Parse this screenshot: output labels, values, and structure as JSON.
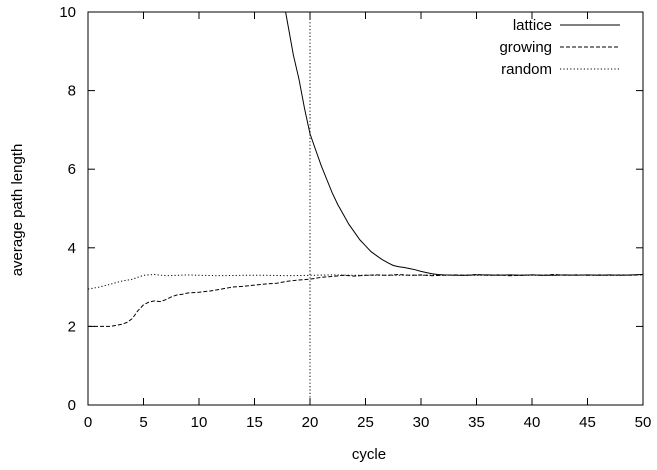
{
  "chart_data": {
    "type": "line",
    "xlabel": "cycle",
    "ylabel": "average path length",
    "xlim": [
      0,
      50
    ],
    "ylim": [
      0,
      10
    ],
    "x_ticks": [
      0,
      5,
      10,
      15,
      20,
      25,
      30,
      35,
      40,
      45,
      50
    ],
    "y_ticks": [
      0,
      2,
      4,
      6,
      8,
      10
    ],
    "grid": false,
    "legend_position": "top-right",
    "reference_line": {
      "x": 20,
      "style": "dotted"
    },
    "series": [
      {
        "name": "lattice",
        "style": "solid",
        "x": [
          17.8,
          18.5,
          19,
          19.5,
          20,
          20.5,
          21,
          21.5,
          22,
          22.5,
          23,
          23.5,
          24,
          24.5,
          25,
          25.5,
          26,
          26.5,
          27,
          27.5,
          28,
          28.5,
          29,
          29.5,
          30,
          30.5,
          31,
          31.5,
          32,
          33,
          34,
          35,
          36,
          37,
          38,
          39,
          40,
          41,
          42,
          43,
          44,
          45,
          46,
          47,
          48,
          49,
          50
        ],
        "y": [
          10.0,
          8.9,
          8.3,
          7.55,
          6.9,
          6.5,
          6.1,
          5.75,
          5.4,
          5.1,
          4.85,
          4.6,
          4.4,
          4.2,
          4.05,
          3.9,
          3.8,
          3.7,
          3.62,
          3.55,
          3.52,
          3.5,
          3.47,
          3.44,
          3.4,
          3.37,
          3.34,
          3.32,
          3.31,
          3.3,
          3.3,
          3.31,
          3.31,
          3.3,
          3.31,
          3.3,
          3.31,
          3.3,
          3.3,
          3.31,
          3.3,
          3.31,
          3.3,
          3.31,
          3.3,
          3.31,
          3.32
        ]
      },
      {
        "name": "growing",
        "style": "dashed",
        "x": [
          0,
          1,
          2,
          3,
          3.5,
          4,
          4.5,
          5,
          5.5,
          6,
          6.5,
          7,
          7.5,
          8,
          8.5,
          9,
          10,
          11,
          12,
          13,
          14,
          15,
          16,
          17,
          18,
          19,
          20,
          21,
          22,
          23,
          24,
          25,
          26,
          27,
          28,
          29,
          30,
          31,
          32,
          33,
          34,
          35,
          36,
          37,
          38,
          39,
          40,
          41,
          42,
          43,
          44,
          45,
          46,
          47,
          48,
          49,
          50
        ],
        "y": [
          2.0,
          2.0,
          2.0,
          2.05,
          2.1,
          2.2,
          2.4,
          2.55,
          2.62,
          2.65,
          2.63,
          2.68,
          2.75,
          2.8,
          2.82,
          2.85,
          2.87,
          2.9,
          2.95,
          3.0,
          3.02,
          3.05,
          3.08,
          3.1,
          3.15,
          3.18,
          3.2,
          3.25,
          3.27,
          3.3,
          3.28,
          3.3,
          3.31,
          3.3,
          3.32,
          3.3,
          3.31,
          3.29,
          3.3,
          3.31,
          3.3,
          3.32,
          3.3,
          3.31,
          3.29,
          3.3,
          3.31,
          3.3,
          3.32,
          3.3,
          3.31,
          3.3,
          3.31,
          3.3,
          3.31,
          3.3,
          3.32
        ]
      },
      {
        "name": "random",
        "style": "dotted",
        "x": [
          0,
          1,
          2,
          3,
          4,
          5,
          6,
          7,
          8,
          9,
          10,
          12,
          14,
          16,
          18,
          20,
          22,
          24,
          26,
          28,
          30,
          32,
          34,
          36,
          38,
          40,
          42,
          44,
          46,
          48,
          50
        ],
        "y": [
          2.95,
          3.0,
          3.07,
          3.15,
          3.2,
          3.3,
          3.32,
          3.29,
          3.3,
          3.31,
          3.3,
          3.29,
          3.3,
          3.3,
          3.29,
          3.3,
          3.31,
          3.3,
          3.3,
          3.3,
          3.3,
          3.31,
          3.3,
          3.3,
          3.31,
          3.3,
          3.3,
          3.31,
          3.3,
          3.3,
          3.31
        ]
      }
    ]
  }
}
